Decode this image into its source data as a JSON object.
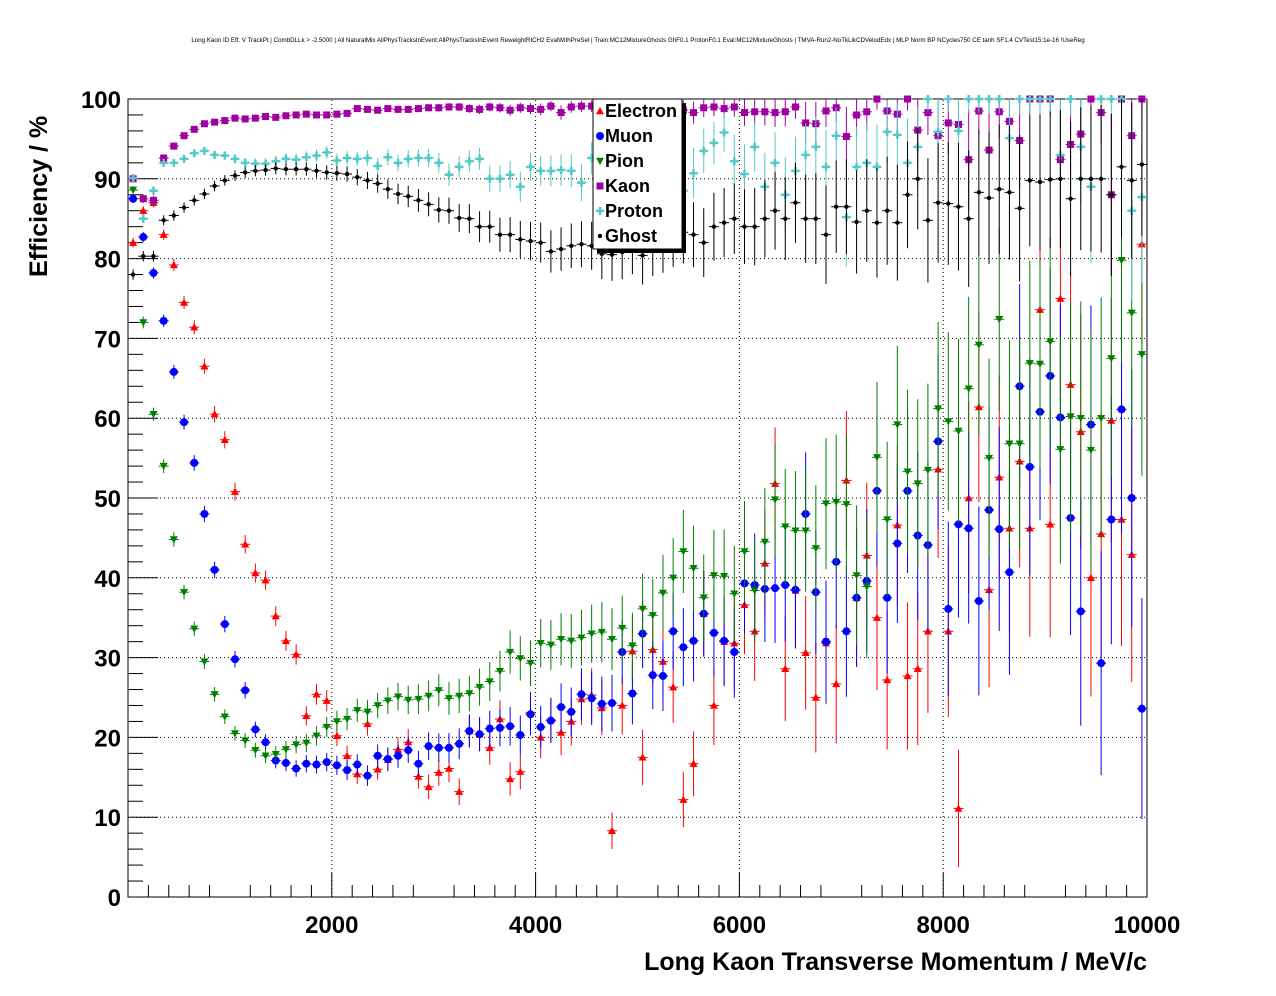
{
  "chart_data": {
    "type": "scatter",
    "title": "Long Kaon ID Eff. V TrackPt | CombDLLk > -2.5000 | All NaturalMix AllPhysTracksInEvent:AllPhysTracksInEvent ReweightRICH2 EvalWithPreSel | Train:MC12MixtureGhosts GhF0.1 ProtonF0.1 Eval:MC12MixtureGhosts | TMVA-Run2-NoTkLikCDVelodEdx | MLP Norm BP NCycles750 CE tanh SF1.4 CVTest15:1e-16 !UseReg",
    "xlabel": "Long Kaon Transverse Momentum / MeV/c",
    "ylabel": "Efficiency / %",
    "xlim": [
      0,
      10000
    ],
    "ylim": [
      0,
      100
    ],
    "bin_width": 100,
    "grid": true,
    "legend_position": "top-center",
    "x_ticks": [
      "2000",
      "4000",
      "6000",
      "8000",
      "10000"
    ],
    "y_ticks": [
      "0",
      "10",
      "20",
      "30",
      "40",
      "50",
      "60",
      "70",
      "80",
      "90",
      "100"
    ],
    "series": [
      {
        "name": "Electron",
        "color": "#ff0000",
        "marker": "triangle-up",
        "values": [
          82.0,
          86.0,
          87.0,
          83.0,
          79.2,
          74.5,
          71.4,
          66.5,
          60.5,
          57.3,
          50.8,
          44.2,
          40.6,
          39.7,
          35.2,
          32.1,
          30.4,
          22.7,
          25.4,
          24.6,
          20.2,
          17.7,
          15.4,
          21.7,
          16.0,
          17.2,
          18.5,
          19.4,
          15.1,
          13.8,
          15.6,
          16.1,
          13.2,
          20.8,
          20.4,
          18.7,
          22.3,
          14.8,
          15.7,
          23.1,
          20.0,
          22.2,
          20.6,
          22.0,
          24.8,
          25.3,
          23.7,
          8.3,
          24.0,
          30.8,
          17.5,
          31.0,
          29.5,
          26.3,
          12.2,
          16.7,
          35.5,
          24.0,
          32.0,
          31.8,
          36.6,
          33.3,
          41.8,
          51.8,
          28.6,
          38.4,
          30.6,
          25.0,
          31.8,
          26.7,
          52.2,
          37.5,
          42.8,
          35.0,
          27.2,
          46.6,
          27.7,
          28.6,
          33.3,
          53.6,
          33.3,
          11.1,
          50.0,
          61.4,
          38.5,
          52.6,
          46.2,
          54.6,
          46.2,
          73.6,
          46.7,
          75.0,
          64.2,
          58.3,
          40.0,
          45.5,
          59.7,
          47.3,
          42.9,
          81.8
        ]
      },
      {
        "name": "Muon",
        "color": "#0000ff",
        "marker": "circle",
        "values": [
          87.5,
          82.7,
          78.2,
          72.2,
          65.8,
          59.5,
          54.4,
          48.0,
          41.0,
          34.2,
          29.8,
          25.9,
          21.0,
          19.4,
          17.1,
          16.8,
          16.1,
          16.7,
          16.6,
          16.9,
          16.5,
          15.9,
          16.6,
          15.2,
          17.7,
          17.3,
          17.7,
          18.4,
          16.7,
          18.9,
          18.7,
          18.7,
          19.2,
          20.8,
          20.4,
          21.1,
          21.2,
          21.4,
          20.3,
          22.9,
          21.3,
          22.1,
          23.8,
          23.2,
          25.4,
          24.9,
          24.2,
          24.3,
          30.7,
          25.5,
          33.0,
          27.8,
          27.7,
          33.3,
          31.3,
          32.1,
          35.5,
          33.1,
          32.1,
          30.7,
          39.3,
          39.1,
          38.6,
          38.7,
          39.1,
          38.5,
          48.0,
          38.2,
          32.0,
          42.0,
          33.3,
          37.5,
          39.6,
          50.9,
          37.5,
          44.3,
          50.9,
          45.3,
          44.1,
          57.1,
          36.1,
          46.7,
          46.2,
          37.1,
          48.5,
          46.1,
          40.7,
          64.0,
          53.9,
          60.8,
          65.3,
          60.1,
          47.5,
          35.8,
          59.2,
          29.3,
          47.3,
          61.1,
          50.0,
          23.6
        ]
      },
      {
        "name": "Pion",
        "color": "#008000",
        "marker": "triangle-down",
        "values": [
          88.6,
          72.0,
          60.5,
          54.0,
          44.8,
          38.2,
          33.6,
          29.5,
          25.4,
          22.6,
          20.5,
          19.6,
          18.4,
          17.7,
          17.9,
          18.5,
          19.1,
          19.3,
          20.2,
          21.3,
          22.0,
          22.3,
          23.4,
          23.2,
          24.0,
          24.6,
          25.1,
          24.7,
          24.8,
          25.2,
          25.9,
          24.9,
          25.2,
          25.5,
          26.3,
          27.0,
          28.3,
          30.7,
          29.9,
          29.3,
          31.8,
          31.6,
          32.3,
          32.1,
          32.5,
          33.0,
          33.2,
          32.3,
          33.7,
          31.5,
          36.1,
          35.3,
          38.1,
          40.0,
          43.3,
          41.2,
          37.5,
          40.3,
          40.2,
          38.0,
          43.3,
          38.4,
          44.5,
          49.8,
          46.4,
          45.9,
          45.9,
          43.7,
          49.3,
          49.5,
          49.2,
          40.3,
          38.9,
          55.1,
          47.3,
          59.2,
          53.3,
          51.8,
          53.5,
          61.2,
          59.6,
          58.4,
          63.7,
          69.2,
          55.0,
          72.4,
          56.8,
          56.8,
          66.9,
          66.8,
          69.6,
          56.1,
          60.2,
          60.0,
          56.0,
          60.0,
          67.5,
          79.8,
          73.2,
          68.0
        ]
      },
      {
        "name": "Kaon",
        "color": "#a000a0",
        "marker": "square",
        "values": [
          90.0,
          87.5,
          87.3,
          92.6,
          94.1,
          95.4,
          96.2,
          96.9,
          97.1,
          97.3,
          97.6,
          97.5,
          97.6,
          97.8,
          97.7,
          97.9,
          98.0,
          98.1,
          98.0,
          98.0,
          98.1,
          98.2,
          98.8,
          98.7,
          98.6,
          98.8,
          98.7,
          98.7,
          98.8,
          98.9,
          98.9,
          99.0,
          99.0,
          98.8,
          98.7,
          99.0,
          98.9,
          98.6,
          98.9,
          98.8,
          98.7,
          99.1,
          98.3,
          99.0,
          99.1,
          99.1,
          97.4,
          98.8,
          98.6,
          99.0,
          97.5,
          98.2,
          98.3,
          98.3,
          98.6,
          98.3,
          98.9,
          99.0,
          98.8,
          99.0,
          98.3,
          98.4,
          98.4,
          98.3,
          98.4,
          99.0,
          97.0,
          96.9,
          98.5,
          98.9,
          95.3,
          98.0,
          98.4,
          100,
          98.5,
          98.1,
          100,
          96.1,
          98.3,
          95.4,
          97.0,
          96.8,
          92.4,
          98.5,
          93.6,
          98.4,
          97.2,
          94.8,
          100,
          100,
          100,
          92.4,
          94.3,
          95.6,
          100,
          98.3,
          88.0,
          100,
          95.4,
          100
        ]
      },
      {
        "name": "Proton",
        "color": "#55c8c8",
        "marker": "cross",
        "values": [
          90.1,
          85.0,
          88.5,
          92.0,
          92.0,
          92.5,
          93.2,
          93.5,
          93.0,
          92.9,
          92.5,
          92.0,
          91.9,
          91.9,
          92.2,
          92.5,
          92.4,
          92.7,
          92.9,
          93.3,
          92.3,
          92.6,
          92.5,
          92.6,
          91.6,
          92.7,
          92.0,
          92.5,
          92.6,
          92.6,
          92.0,
          90.5,
          91.5,
          92.2,
          92.5,
          90.0,
          90.0,
          90.5,
          89.0,
          91.5,
          91.0,
          91.0,
          91.1,
          91.0,
          89.5,
          92.6,
          89.9,
          93.0,
          92.0,
          93.4,
          90.5,
          92.2,
          95.0,
          90.8,
          88.5,
          90.7,
          93.5,
          94.5,
          95.8,
          92.2,
          90.6,
          94.0,
          89.0,
          92.0,
          88.0,
          91.0,
          93.0,
          94.0,
          91.5,
          95.4,
          85.2,
          91.5,
          92.0,
          91.5,
          95.9,
          95.5,
          92.0,
          94.0,
          100,
          95.9,
          100,
          96.0,
          100,
          100,
          100,
          100,
          95.1,
          100,
          100,
          100,
          100,
          93.0,
          100,
          94.0,
          89.0,
          100,
          100,
          100,
          86.0,
          87.7
        ]
      },
      {
        "name": "Ghost",
        "color": "#000000",
        "marker": "dot",
        "values": [
          78.0,
          80.3,
          80.3,
          84.8,
          85.4,
          86.4,
          87.3,
          88.1,
          89.1,
          89.8,
          90.4,
          90.8,
          91.0,
          91.1,
          91.3,
          91.2,
          91.2,
          91.2,
          91.0,
          90.8,
          90.7,
          90.6,
          90.2,
          89.8,
          89.4,
          88.7,
          88.1,
          87.8,
          87.3,
          86.8,
          86.1,
          86.0,
          85.1,
          85.0,
          84.0,
          84.0,
          83.0,
          83.0,
          82.4,
          82.2,
          82.0,
          80.9,
          81.2,
          81.6,
          81.8,
          81.6,
          80.6,
          80.5,
          80.8,
          81.5,
          80.4,
          81.5,
          82.0,
          82.8,
          83.3,
          83.0,
          82.0,
          84.0,
          84.5,
          85.0,
          84.0,
          84.0,
          85.0,
          86.0,
          85.0,
          87.0,
          85.0,
          85.0,
          83.0,
          86.5,
          86.5,
          84.6,
          86.0,
          84.5,
          86.0,
          84.5,
          88.0,
          90.0,
          84.8,
          87.0,
          86.9,
          86.5,
          85.0,
          88.3,
          87.6,
          88.7,
          88.3,
          86.3,
          89.8,
          89.6,
          89.9,
          90.0,
          87.5,
          90.0,
          90.0,
          90.0,
          88.0,
          91.5,
          89.8,
          91.8
        ]
      }
    ]
  }
}
